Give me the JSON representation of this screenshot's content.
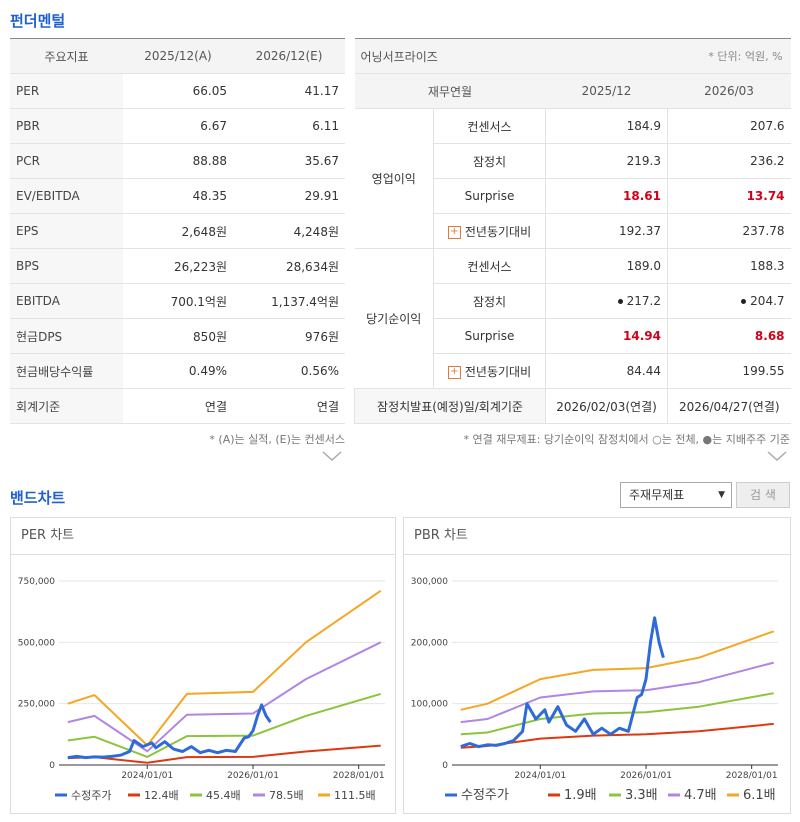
{
  "fundamentals": {
    "title": "펀더멘털",
    "header": [
      "주요지표",
      "2025/12(A)",
      "2026/12(E)"
    ],
    "rows": [
      [
        "PER",
        "66.05",
        "41.17"
      ],
      [
        "PBR",
        "6.67",
        "6.11"
      ],
      [
        "PCR",
        "88.88",
        "35.67"
      ],
      [
        "EV/EBITDA",
        "48.35",
        "29.91"
      ],
      [
        "EPS",
        "2,648원",
        "4,248원"
      ],
      [
        "BPS",
        "26,223원",
        "28,634원"
      ],
      [
        "EBITDA",
        "700.1억원",
        "1,137.4억원"
      ],
      [
        "현금DPS",
        "850원",
        "976원"
      ],
      [
        "현금배당수익률",
        "0.49%",
        "0.56%"
      ],
      [
        "회계기준",
        "연결",
        "연결"
      ]
    ],
    "note": "* (A)는 실적, (E)는 컨센서스"
  },
  "earnings_surprise": {
    "title": "어닝서프라이즈",
    "unit": "* 단위: 억원, %",
    "header": [
      "재무연월",
      "2025/12",
      "2026/03"
    ],
    "groups": [
      {
        "name": "영업이익",
        "rows": [
          [
            "컨센서스",
            "184.9",
            "207.6"
          ],
          [
            "잠정치",
            "219.3",
            "236.2"
          ],
          [
            "Surprise",
            "18.61",
            "13.74"
          ],
          [
            "전년동기대비",
            "192.37",
            "237.78"
          ]
        ]
      },
      {
        "name": "당기순이익",
        "rows": [
          [
            "컨센서스",
            "189.0",
            "188.3"
          ],
          [
            "잠정치",
            "217.2",
            "204.7"
          ],
          [
            "Surprise",
            "14.94",
            "8.68"
          ],
          [
            "전년동기대비",
            "84.44",
            "199.55"
          ]
        ]
      }
    ],
    "footer_row": [
      "잠정치발표(예정)일/회계기준",
      "2026/02/03(연결)",
      "2026/04/27(연결)"
    ],
    "note": "* 연결 재무제표: 당기순이익 잠정치에서 ○는 전체, ●는 지배주주 기준"
  },
  "band_chart": {
    "title": "밴드차트",
    "select": "주재무제표",
    "button": "검 색"
  },
  "chart_data": [
    {
      "type": "line",
      "title": "PER 차트",
      "xlim": [
        "2022/05/01",
        "2028/07/01"
      ],
      "xticks": [
        "2024/01/01",
        "2026/01/01",
        "2028/01/01"
      ],
      "ylim": [
        0,
        750000
      ],
      "yticks": [
        0,
        {
          "value": 250000,
          "label": "250,000"
        },
        {
          "value": 500000,
          "label": "500,000"
        },
        {
          "value": 750000,
          "label": "750,000"
        }
      ],
      "grid": true,
      "x": [
        "2022/07/01",
        "2023/01/01",
        "2024/01/01",
        "2024/10/01",
        "2026/01/01",
        "2027/01/01",
        "2028/06/01"
      ],
      "series": [
        {
          "name": "수정주가",
          "color": "#2e6bd9",
          "x": [
            "2022/07/01",
            "2022/09/01",
            "2022/11/01",
            "2023/01/01",
            "2023/03/01",
            "2023/05/01",
            "2023/07/01",
            "2023/09/01",
            "2023/10/01",
            "2023/12/01",
            "2024/02/01",
            "2024/03/01",
            "2024/05/01",
            "2024/07/01",
            "2024/09/01",
            "2024/11/01",
            "2025/01/01",
            "2025/03/01",
            "2025/05/01",
            "2025/07/01",
            "2025/09/01",
            "2025/11/01",
            "2025/12/01",
            "2026/01/01",
            "2026/02/01",
            "2026/03/01",
            "2026/04/01",
            "2026/05/01"
          ],
          "values": [
            30000,
            35000,
            30000,
            33000,
            32000,
            35000,
            40000,
            55000,
            100000,
            75000,
            90000,
            70000,
            95000,
            65000,
            55000,
            75000,
            50000,
            60000,
            50000,
            60000,
            55000,
            110000,
            115000,
            140000,
            200000,
            245000,
            200000,
            175000
          ]
        },
        {
          "name": "12.4배",
          "color": "#dc3912",
          "values": [
            28000,
            32000,
            9000,
            32000,
            33000,
            55000,
            79000
          ]
        },
        {
          "name": "45.4배",
          "color": "#8cc43c",
          "values": [
            100000,
            115000,
            33000,
            118000,
            120000,
            200000,
            290000
          ]
        },
        {
          "name": "78.5배",
          "color": "#b085e3",
          "values": [
            175000,
            200000,
            56000,
            205000,
            210000,
            350000,
            500000
          ]
        },
        {
          "name": "111.5배",
          "color": "#f5a623",
          "values": [
            250000,
            285000,
            80000,
            290000,
            298000,
            500000,
            710000
          ]
        }
      ]
    },
    {
      "type": "line",
      "title": "PBR 차트",
      "xlim": [
        "2022/05/01",
        "2028/07/01"
      ],
      "xticks": [
        "2024/01/01",
        "2026/01/01",
        "2028/01/01"
      ],
      "ylim": [
        0,
        300000
      ],
      "yticks": [
        0,
        {
          "value": 100000,
          "label": "100,000"
        },
        {
          "value": 200000,
          "label": "200,000"
        },
        {
          "value": 300000,
          "label": "300,000"
        }
      ],
      "grid": true,
      "x": [
        "2022/07/01",
        "2023/01/01",
        "2024/01/01",
        "2025/01/01",
        "2026/01/01",
        "2027/01/01",
        "2028/06/01"
      ],
      "series": [
        {
          "name": "수정주가",
          "color": "#2e6bd9",
          "x": [
            "2022/07/01",
            "2022/09/01",
            "2022/11/01",
            "2023/01/01",
            "2023/03/01",
            "2023/05/01",
            "2023/07/01",
            "2023/09/01",
            "2023/10/01",
            "2023/12/01",
            "2024/02/01",
            "2024/03/01",
            "2024/05/01",
            "2024/07/01",
            "2024/09/01",
            "2024/11/01",
            "2025/01/01",
            "2025/03/01",
            "2025/05/01",
            "2025/07/01",
            "2025/09/01",
            "2025/11/01",
            "2025/12/01",
            "2026/01/01",
            "2026/02/01",
            "2026/03/01",
            "2026/04/01",
            "2026/05/01"
          ],
          "values": [
            30000,
            35000,
            30000,
            33000,
            32000,
            35000,
            40000,
            55000,
            100000,
            75000,
            90000,
            70000,
            95000,
            65000,
            55000,
            75000,
            50000,
            60000,
            50000,
            60000,
            55000,
            110000,
            115000,
            140000,
            200000,
            240000,
            200000,
            175000
          ]
        },
        {
          "name": "1.9배",
          "color": "#dc3912",
          "values": [
            28000,
            31000,
            43000,
            48000,
            50000,
            55000,
            67000
          ]
        },
        {
          "name": "3.3배",
          "color": "#8cc43c",
          "values": [
            50000,
            53000,
            75000,
            84000,
            86000,
            95000,
            117000
          ]
        },
        {
          "name": "4.7배",
          "color": "#b085e3",
          "values": [
            70000,
            75000,
            110000,
            120000,
            122000,
            135000,
            167000
          ]
        },
        {
          "name": "6.1배",
          "color": "#f5a623",
          "values": [
            90000,
            100000,
            140000,
            155000,
            158000,
            175000,
            218000
          ]
        }
      ]
    }
  ]
}
